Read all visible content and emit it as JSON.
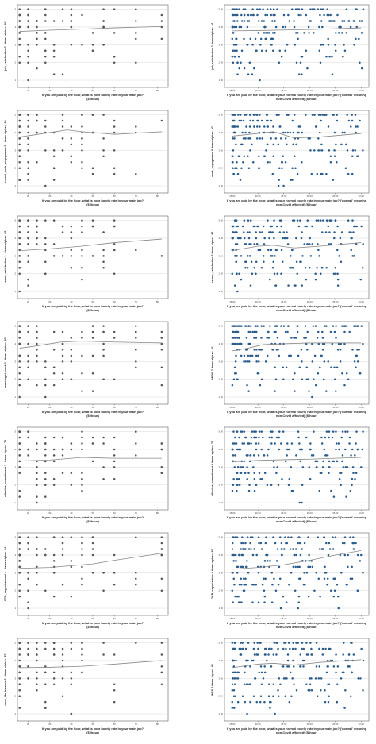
{
  "chart_data": [
    {
      "type": "scatter",
      "side": "left",
      "title": "",
      "ylabel": "job_satisfaction 3 - items alpha= .91",
      "xlabel": [
        "If you are paid by the hour, what is your hourly rate in your main job?",
        "($ /hour)"
      ],
      "x_ticks": [
        "20",
        "30",
        "40",
        "50",
        "60",
        "70",
        "80"
      ],
      "xlim": [
        15,
        85
      ],
      "y_ticks": [
        "1",
        "2",
        "3",
        "4",
        "5"
      ],
      "ylim": [
        0.6,
        5.25
      ],
      "point_color": "#555555",
      "fit_line": {
        "x": [
          16,
          30,
          45,
          60,
          82
        ],
        "y": [
          3.75,
          3.82,
          3.88,
          3.95,
          4.03
        ]
      }
    },
    {
      "type": "scatter",
      "side": "right",
      "title": "",
      "ylabel": "job_satisfaction 3 items alpha= .91",
      "xlabel": [
        "If you are paid by the hour, what is your normal hourly rate in your main job? ('normal' meaning",
        "non-Covid affected) ($/hour)"
      ],
      "x_ticks": [
        "15.00",
        "20.00",
        "25.00",
        "30.00",
        "35.00",
        "40.00"
      ],
      "xlim": [
        13.5,
        41.5
      ],
      "y_ticks": [
        "1.00",
        "2.00",
        "3.00",
        "4.00",
        "5.00"
      ],
      "ylim": [
        0.6,
        5.25
      ],
      "point_color": "#2a5b8a",
      "fit_line": {
        "x": [
          15,
          20,
          25,
          30,
          35,
          40
        ],
        "y": [
          3.78,
          3.8,
          3.83,
          3.86,
          3.9,
          3.95
        ]
      }
    },
    {
      "type": "scatter",
      "side": "left",
      "title": "",
      "ylabel": "overall_work_engagement 9 - items alpha= .92",
      "xlabel": [
        "If you are paid by the hour, what is your hourly rate in your main job?",
        "($ /hour)"
      ],
      "x_ticks": [
        "20",
        "30",
        "40",
        "50",
        "60",
        "70",
        "80"
      ],
      "xlim": [
        15,
        85
      ],
      "y_ticks": [
        "1",
        "2",
        "3",
        "4",
        "5"
      ],
      "ylim": [
        0.6,
        5.25
      ],
      "point_color": "#555555",
      "fit_line": {
        "x": [
          16,
          30,
          38,
          45,
          60,
          82
        ],
        "y": [
          3.75,
          4.0,
          4.15,
          4.05,
          3.9,
          4.05
        ]
      }
    },
    {
      "type": "scatter",
      "side": "right",
      "title": "",
      "ylabel": "work_engagement 9 items alpha= .92",
      "xlabel": [
        "If you are paid by the hour, what is your normal hourly rate in your main job? ('normal' meaning",
        "non-Covid affected) ($/hour)"
      ],
      "x_ticks": [
        "15.00",
        "20.00",
        "25.00",
        "30.00",
        "35.00",
        "40.00"
      ],
      "xlim": [
        13.5,
        41.5
      ],
      "y_ticks": [
        "1.00",
        "2.00",
        "3.00",
        "4.00",
        "5.00"
      ],
      "ylim": [
        0.6,
        5.25
      ],
      "point_color": "#2a5b8a",
      "fit_line": {
        "x": [
          15,
          20,
          23,
          27,
          32,
          40
        ],
        "y": [
          3.8,
          3.95,
          4.05,
          3.7,
          3.75,
          3.95
        ]
      }
    },
    {
      "type": "scatter",
      "side": "left",
      "title": "",
      "ylabel": "career_satisfaction 3 - items alpha= .85",
      "xlabel": [
        "If you are paid by the hour, what is your hourly rate in your main job?",
        "($ /hour)"
      ],
      "x_ticks": [
        "20",
        "30",
        "40",
        "50",
        "60",
        "70",
        "80"
      ],
      "xlim": [
        15,
        85
      ],
      "y_ticks": [
        "1",
        "2",
        "3",
        "4",
        "5"
      ],
      "ylim": [
        0.6,
        5.25
      ],
      "point_color": "#555555",
      "fit_line": {
        "x": [
          16,
          30,
          45,
          60,
          82
        ],
        "y": [
          3.3,
          3.4,
          3.55,
          3.75,
          3.95
        ]
      }
    },
    {
      "type": "scatter",
      "side": "right",
      "title": "",
      "ylabel": "career_satisfaction 3 items alpha= .87",
      "xlabel": [
        "If you are paid by the hour, what is your normal hourly rate in your main job? ('normal' meaning",
        "non-Covid affected) ($/hour)"
      ],
      "x_ticks": [
        "15.00",
        "20.00",
        "25.00",
        "30.00",
        "35.00",
        "40.00"
      ],
      "xlim": [
        13.5,
        41.5
      ],
      "y_ticks": [
        "1.00",
        "2.00",
        "3.00",
        "4.00",
        "5.00"
      ],
      "ylim": [
        0.6,
        5.25
      ],
      "point_color": "#2a5b8a",
      "fit_line": {
        "x": [
          15,
          20,
          23,
          27,
          32,
          40
        ],
        "y": [
          3.3,
          3.55,
          3.6,
          3.45,
          3.55,
          3.75
        ]
      }
    },
    {
      "type": "scatter",
      "side": "left",
      "title": "",
      "ylabel": "meaningful_work 3 - items alpha= .93",
      "xlabel": [
        "If you are paid by the hour, what is your hourly rate in your main job?",
        "($ /hour)"
      ],
      "x_ticks": [
        "20",
        "30",
        "40",
        "50",
        "60",
        "70",
        "80"
      ],
      "xlim": [
        15,
        85
      ],
      "y_ticks": [
        "1",
        "2",
        "3",
        "4",
        "5"
      ],
      "ylim": [
        0.6,
        5.25
      ],
      "point_color": "#555555",
      "fit_line": {
        "x": [
          16,
          25,
          35,
          45,
          60,
          82
        ],
        "y": [
          3.75,
          3.9,
          4.1,
          4.15,
          4.1,
          4.05
        ]
      }
    },
    {
      "type": "scatter",
      "side": "right",
      "title": "",
      "ylabel": "MFWI 3 items alpha= .91",
      "xlabel": [
        "If you are paid by the hour, what is your normal hourly rate in your main job? ('normal' meaning",
        "non-Covid affected) ($/hour)"
      ],
      "x_ticks": [
        "15.00",
        "20.00",
        "25.00",
        "30.00",
        "35.00",
        "40.00"
      ],
      "xlim": [
        13.5,
        41.5
      ],
      "y_ticks": [
        "1.00",
        "2.00",
        "3.00",
        "4.00",
        "5.00"
      ],
      "ylim": [
        0.6,
        5.25
      ],
      "point_color": "#2a5b8a",
      "fit_line": {
        "x": [
          15,
          18,
          21,
          25,
          30,
          40
        ],
        "y": [
          3.6,
          3.75,
          3.95,
          4.0,
          4.05,
          4.05
        ]
      }
    },
    {
      "type": "scatter",
      "side": "left",
      "title": "",
      "ylabel": "affective_commitment 3 - items alpha= .79",
      "xlabel": [
        "If you are paid by the hour, what is your hourly rate in your main job?",
        "($ /hour)"
      ],
      "x_ticks": [
        "20",
        "30",
        "40",
        "50",
        "60",
        "70",
        "80"
      ],
      "xlim": [
        15,
        85
      ],
      "y_ticks": [
        "1",
        "2",
        "3",
        "4",
        "5"
      ],
      "ylim": [
        0.6,
        5.25
      ],
      "point_color": "#555555",
      "fit_line": {
        "x": [
          16,
          30,
          45,
          60,
          82
        ],
        "y": [
          3.35,
          3.4,
          3.55,
          3.5,
          3.5
        ]
      }
    },
    {
      "type": "scatter",
      "side": "right",
      "title": "",
      "ylabel": "affective_commitment 3 items alpha= .75",
      "xlabel": [
        "If you are paid by the hour, what is your normal hourly rate in your main job? ('normal' meaning",
        "non-Covid affected) ($/hour)"
      ],
      "x_ticks": [
        "15.00",
        "20.00",
        "25.00",
        "30.00",
        "35.00",
        "40.00"
      ],
      "xlim": [
        13.5,
        41.5
      ],
      "y_ticks": [
        "1.00",
        "2.00",
        "3.00",
        "4.00",
        "5.00"
      ],
      "ylim": [
        0.6,
        5.25
      ],
      "point_color": "#2a5b8a",
      "fit_line": {
        "x": [
          15,
          20,
          25,
          30,
          35,
          40
        ],
        "y": [
          3.3,
          3.38,
          3.42,
          3.45,
          3.5,
          3.55
        ]
      }
    },
    {
      "type": "scatter",
      "side": "left",
      "title": "",
      "ylabel": "OCB_organizational 4 - items alpha= .84",
      "xlabel": [
        "If you are paid by the hour, what is your hourly rate in your main job?",
        "($ /hour)"
      ],
      "x_ticks": [
        "20",
        "30",
        "40",
        "50",
        "60",
        "70",
        "80"
      ],
      "xlim": [
        15,
        85
      ],
      "y_ticks": [
        "1",
        "2",
        "3",
        "4",
        "5"
      ],
      "ylim": [
        0.6,
        5.25
      ],
      "point_color": "#555555",
      "fit_line": {
        "x": [
          16,
          30,
          40,
          50,
          60,
          82
        ],
        "y": [
          3.25,
          3.3,
          3.4,
          3.5,
          3.7,
          4.1
        ]
      }
    },
    {
      "type": "scatter",
      "side": "right",
      "title": "",
      "ylabel": "OCB_organization 4 items alpha= .82",
      "xlabel": [
        "If you are paid by the hour, what is your normal hourly rate in your main job? ('normal' meaning",
        "non-Covid affected) ($/hour)"
      ],
      "x_ticks": [
        "15.00",
        "20.00",
        "25.00",
        "30.00",
        "35.00",
        "40.00"
      ],
      "xlim": [
        13.5,
        41.5
      ],
      "y_ticks": [
        "1.00",
        "2.00",
        "3.00",
        "4.00",
        "5.00"
      ],
      "ylim": [
        0.6,
        5.25
      ],
      "point_color": "#2a5b8a",
      "fit_line": {
        "x": [
          15,
          20,
          25,
          30,
          35,
          40
        ],
        "y": [
          3.2,
          3.3,
          3.45,
          3.7,
          4.0,
          4.25
        ]
      }
    },
    {
      "type": "scatter",
      "side": "left",
      "title": "",
      "ylabel": "work_life_balance 3 - items alpha= .87",
      "xlabel": [
        "If you are paid by the hour, what is your hourly rate in your main job?",
        "($ /hour)"
      ],
      "x_ticks": [
        "20",
        "30",
        "40",
        "50",
        "60",
        "70",
        "80"
      ],
      "xlim": [
        15,
        85
      ],
      "y_ticks": [
        "1",
        "2",
        "3",
        "4",
        "5"
      ],
      "ylim": [
        0.6,
        5.25
      ],
      "point_color": "#555555",
      "fit_line": {
        "x": [
          16,
          30,
          45,
          60,
          82
        ],
        "y": [
          3.6,
          3.62,
          3.68,
          3.8,
          4.0
        ]
      }
    },
    {
      "type": "scatter",
      "side": "right",
      "title": "",
      "ylabel": "WLB 3 items alpha= .86",
      "xlabel": [
        "If you are paid by the hour, what is your normal hourly rate in your main job? ('normal' meaning",
        "non-Covid affected) ($/hour)"
      ],
      "x_ticks": [
        "15.00",
        "20.00",
        "25.00",
        "30.00",
        "35.00",
        "40.00"
      ],
      "xlim": [
        13.5,
        41.5
      ],
      "y_ticks": [
        "1.00",
        "2.00",
        "3.00",
        "4.00",
        "5.00"
      ],
      "ylim": [
        0.6,
        5.25
      ],
      "point_color": "#2a5b8a",
      "fit_line": {
        "x": [
          15,
          20,
          23,
          27,
          32,
          40
        ],
        "y": [
          3.6,
          3.8,
          3.85,
          3.75,
          3.9,
          4.05
        ]
      }
    }
  ]
}
